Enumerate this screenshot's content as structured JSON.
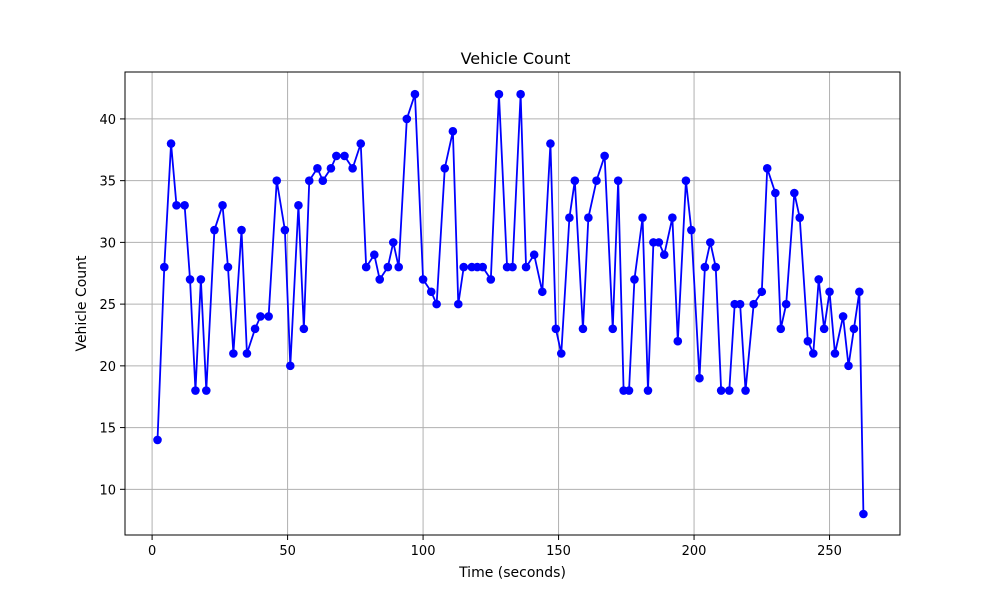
{
  "chart_data": {
    "type": "line",
    "title": "Vehicle Count",
    "xlabel": "Time (seconds)",
    "ylabel": "Vehicle Count",
    "xlim": [
      -10,
      276
    ],
    "ylim": [
      6.3,
      43.8
    ],
    "xticks": [
      0,
      50,
      100,
      150,
      200,
      250
    ],
    "yticks": [
      10,
      15,
      20,
      25,
      30,
      35,
      40
    ],
    "grid": true,
    "marker": "circle",
    "colors": {
      "series": "#0000ff",
      "grid": "#b0b0b0"
    },
    "series": [
      {
        "x": [
          2,
          4.5,
          7,
          9,
          12,
          14,
          16,
          18,
          20,
          23,
          26,
          28,
          30,
          33,
          35,
          38,
          40,
          43,
          46,
          49,
          51,
          54,
          56,
          58,
          61,
          63,
          66,
          68,
          71,
          74,
          77,
          79,
          82,
          84,
          87,
          89,
          91,
          94,
          97,
          100,
          103,
          105,
          108,
          111,
          113,
          115,
          118,
          120,
          122,
          125,
          128,
          131,
          133,
          136,
          138,
          141,
          144,
          147,
          149,
          151,
          154,
          156,
          159,
          161,
          164,
          167,
          170,
          172,
          174,
          176,
          178,
          181,
          183,
          185,
          187,
          189,
          192,
          194,
          197,
          199,
          202,
          204,
          206,
          208,
          210,
          213,
          215,
          217,
          219,
          222,
          225,
          227,
          230,
          232,
          234,
          237,
          239,
          242,
          244,
          246,
          248,
          250,
          252,
          255,
          257,
          259,
          261,
          262.5
        ],
        "y": [
          14,
          28,
          38,
          33,
          33,
          27,
          18,
          27,
          18,
          31,
          33,
          28,
          21,
          31,
          21,
          23,
          24,
          24,
          35,
          31,
          20,
          33,
          23,
          35,
          36,
          35,
          36,
          37,
          37,
          36,
          38,
          28,
          29,
          27,
          28,
          30,
          28,
          40,
          42,
          27,
          26,
          25,
          36,
          39,
          25,
          28,
          28,
          28,
          28,
          27,
          42,
          28,
          28,
          42,
          28,
          29,
          26,
          38,
          23,
          21,
          32,
          35,
          23,
          32,
          35,
          37,
          23,
          35,
          18,
          18,
          27,
          32,
          18,
          30,
          30,
          29,
          32,
          22,
          35,
          31,
          19,
          28,
          30,
          28,
          18,
          18,
          25,
          25,
          18,
          25,
          26,
          36,
          34,
          23,
          25,
          34,
          32,
          22,
          21,
          27,
          23,
          26,
          21,
          24,
          20,
          23,
          26,
          8
        ]
      }
    ]
  }
}
